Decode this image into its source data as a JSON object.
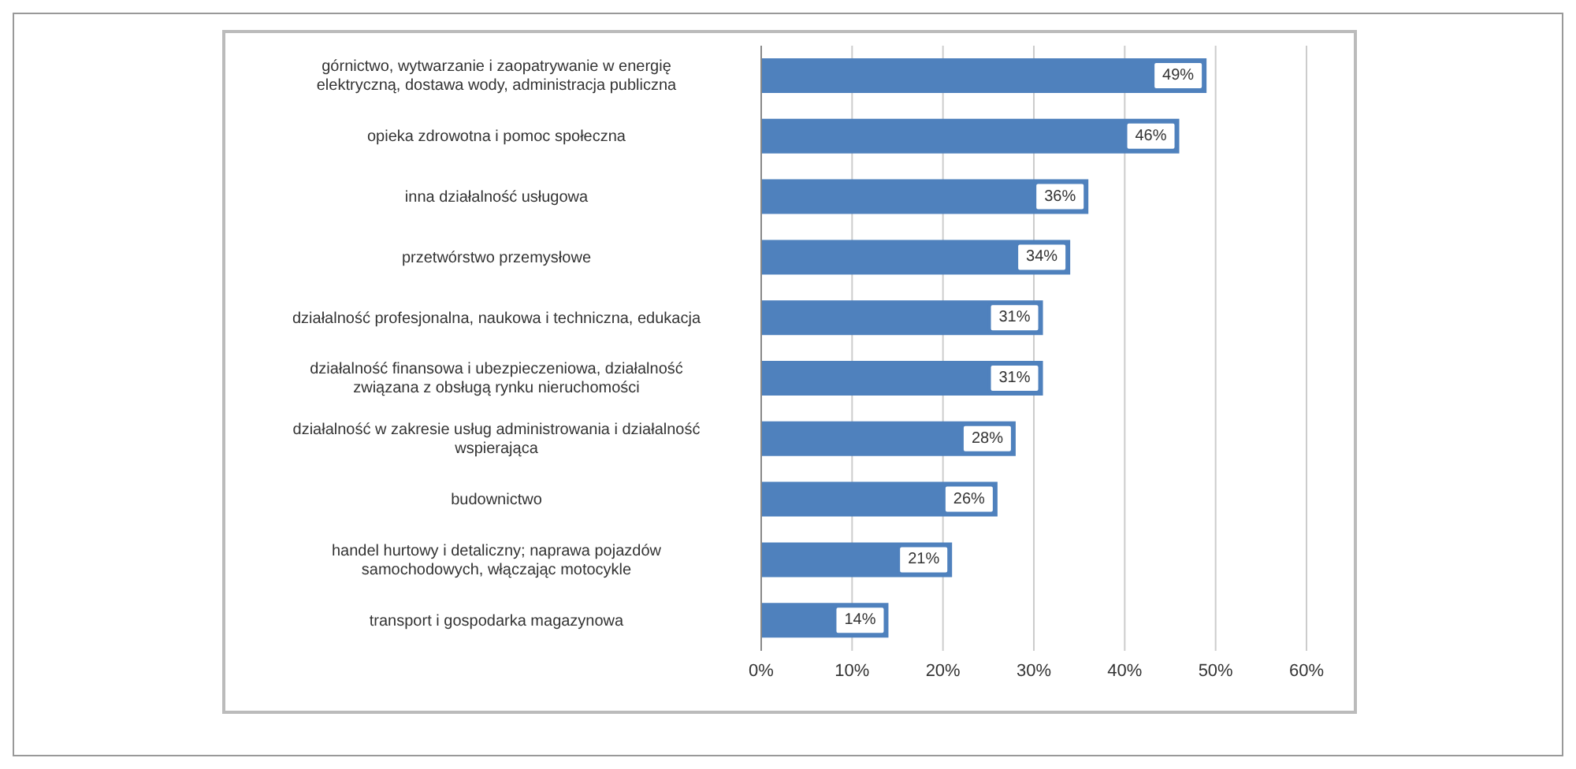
{
  "chart_data": {
    "type": "bar",
    "orientation": "horizontal",
    "categories": [
      "górnictwo, wytwarzanie i zaopatrywanie w energię elektryczną, dostawa wody, administracja publiczna",
      "opieka zdrowotna i pomoc społeczna",
      "inna działalność usługowa",
      "przetwórstwo przemysłowe",
      "działalność profesjonalna, naukowa i techniczna, edukacja",
      "działalność finansowa i ubezpieczeniowa, działalność związana z obsługą rynku nieruchomości",
      "działalność w zakresie usług administrowania i działalność wspierająca",
      "budownictwo",
      "handel hurtowy i detaliczny; naprawa pojazdów samochodowych, włączając motocykle",
      "transport i gospodarka magazynowa"
    ],
    "values": [
      49,
      46,
      36,
      34,
      31,
      31,
      28,
      26,
      21,
      14
    ],
    "value_labels": [
      "49%",
      "46%",
      "36%",
      "34%",
      "31%",
      "31%",
      "28%",
      "26%",
      "21%",
      "14%"
    ],
    "color": "#4f81bd",
    "xlim": [
      0,
      60
    ],
    "xticks": [
      {
        "value": 0,
        "label": "0%"
      },
      {
        "value": 10,
        "label": "10%"
      },
      {
        "value": 20,
        "label": "20%"
      },
      {
        "value": 30,
        "label": "30%"
      },
      {
        "value": 40,
        "label": "40%"
      },
      {
        "value": 50,
        "label": "50%"
      },
      {
        "value": 60,
        "label": "60%"
      }
    ],
    "grid": "x"
  }
}
